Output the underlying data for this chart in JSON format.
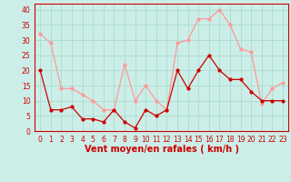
{
  "x": [
    0,
    1,
    2,
    3,
    4,
    5,
    6,
    7,
    8,
    9,
    10,
    11,
    12,
    13,
    14,
    15,
    16,
    17,
    18,
    19,
    20,
    21,
    22,
    23
  ],
  "wind_mean": [
    20,
    7,
    7,
    8,
    4,
    4,
    3,
    7,
    3,
    1,
    7,
    5,
    7,
    20,
    14,
    20,
    25,
    20,
    17,
    17,
    13,
    10,
    10,
    10
  ],
  "wind_gust": [
    32,
    29,
    14,
    14,
    12,
    10,
    7,
    7,
    22,
    10,
    15,
    10,
    7,
    29,
    30,
    37,
    37,
    40,
    35,
    27,
    26,
    9,
    14,
    16
  ],
  "background_color": "#cceee8",
  "grid_color": "#aaddcc",
  "line_mean_color": "#cc0000",
  "line_gust_color": "#ff9999",
  "marker_size": 2.0,
  "xlabel": "Vent moyen/en rafales ( km/h )",
  "ylim": [
    0,
    42
  ],
  "xlim": [
    -0.5,
    23.5
  ],
  "yticks": [
    0,
    5,
    10,
    15,
    20,
    25,
    30,
    35,
    40
  ],
  "xticks": [
    0,
    1,
    2,
    3,
    4,
    5,
    6,
    7,
    8,
    9,
    10,
    11,
    12,
    13,
    14,
    15,
    16,
    17,
    18,
    19,
    20,
    21,
    22,
    23
  ],
  "tick_fontsize": 5.5,
  "xlabel_fontsize": 7.0
}
